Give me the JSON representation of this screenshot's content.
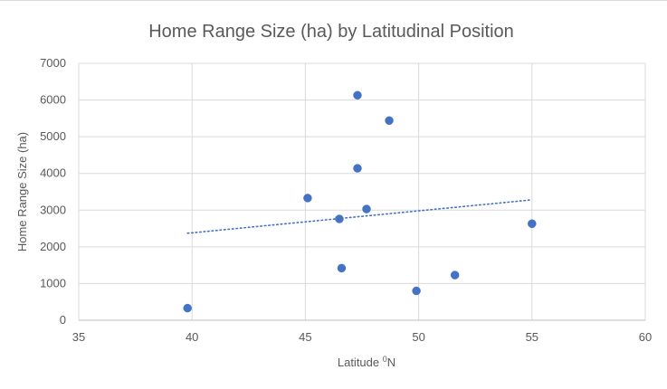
{
  "chart_data": {
    "type": "scatter",
    "title": "Home Range Size (ha) by Latitudinal Position",
    "xlabel_prefix": "Latitude ",
    "xlabel_superscript": "0",
    "xlabel_suffix": "N",
    "ylabel": "Home Range Size (ha)",
    "xlim": [
      35,
      60
    ],
    "ylim": [
      0,
      7000
    ],
    "x_ticks": [
      35,
      40,
      45,
      50,
      55,
      60
    ],
    "y_ticks": [
      0,
      1000,
      2000,
      3000,
      4000,
      5000,
      6000,
      7000
    ],
    "grid": true,
    "legend": "none",
    "series": [
      {
        "color": "#4472c4",
        "points": [
          {
            "x": 39.8,
            "y": 330
          },
          {
            "x": 45.1,
            "y": 3330
          },
          {
            "x": 46.5,
            "y": 2760
          },
          {
            "x": 46.6,
            "y": 1420
          },
          {
            "x": 47.3,
            "y": 6130
          },
          {
            "x": 47.3,
            "y": 4140
          },
          {
            "x": 47.7,
            "y": 3030
          },
          {
            "x": 48.7,
            "y": 5440
          },
          {
            "x": 49.9,
            "y": 800
          },
          {
            "x": 51.6,
            "y": 1230
          },
          {
            "x": 55.0,
            "y": 2630
          }
        ]
      }
    ],
    "trendline": {
      "type": "linear",
      "style": "dotted",
      "color": "#4472c4",
      "start": {
        "x": 39.8,
        "y": 2370
      },
      "end": {
        "x": 55.0,
        "y": 3280
      }
    }
  }
}
